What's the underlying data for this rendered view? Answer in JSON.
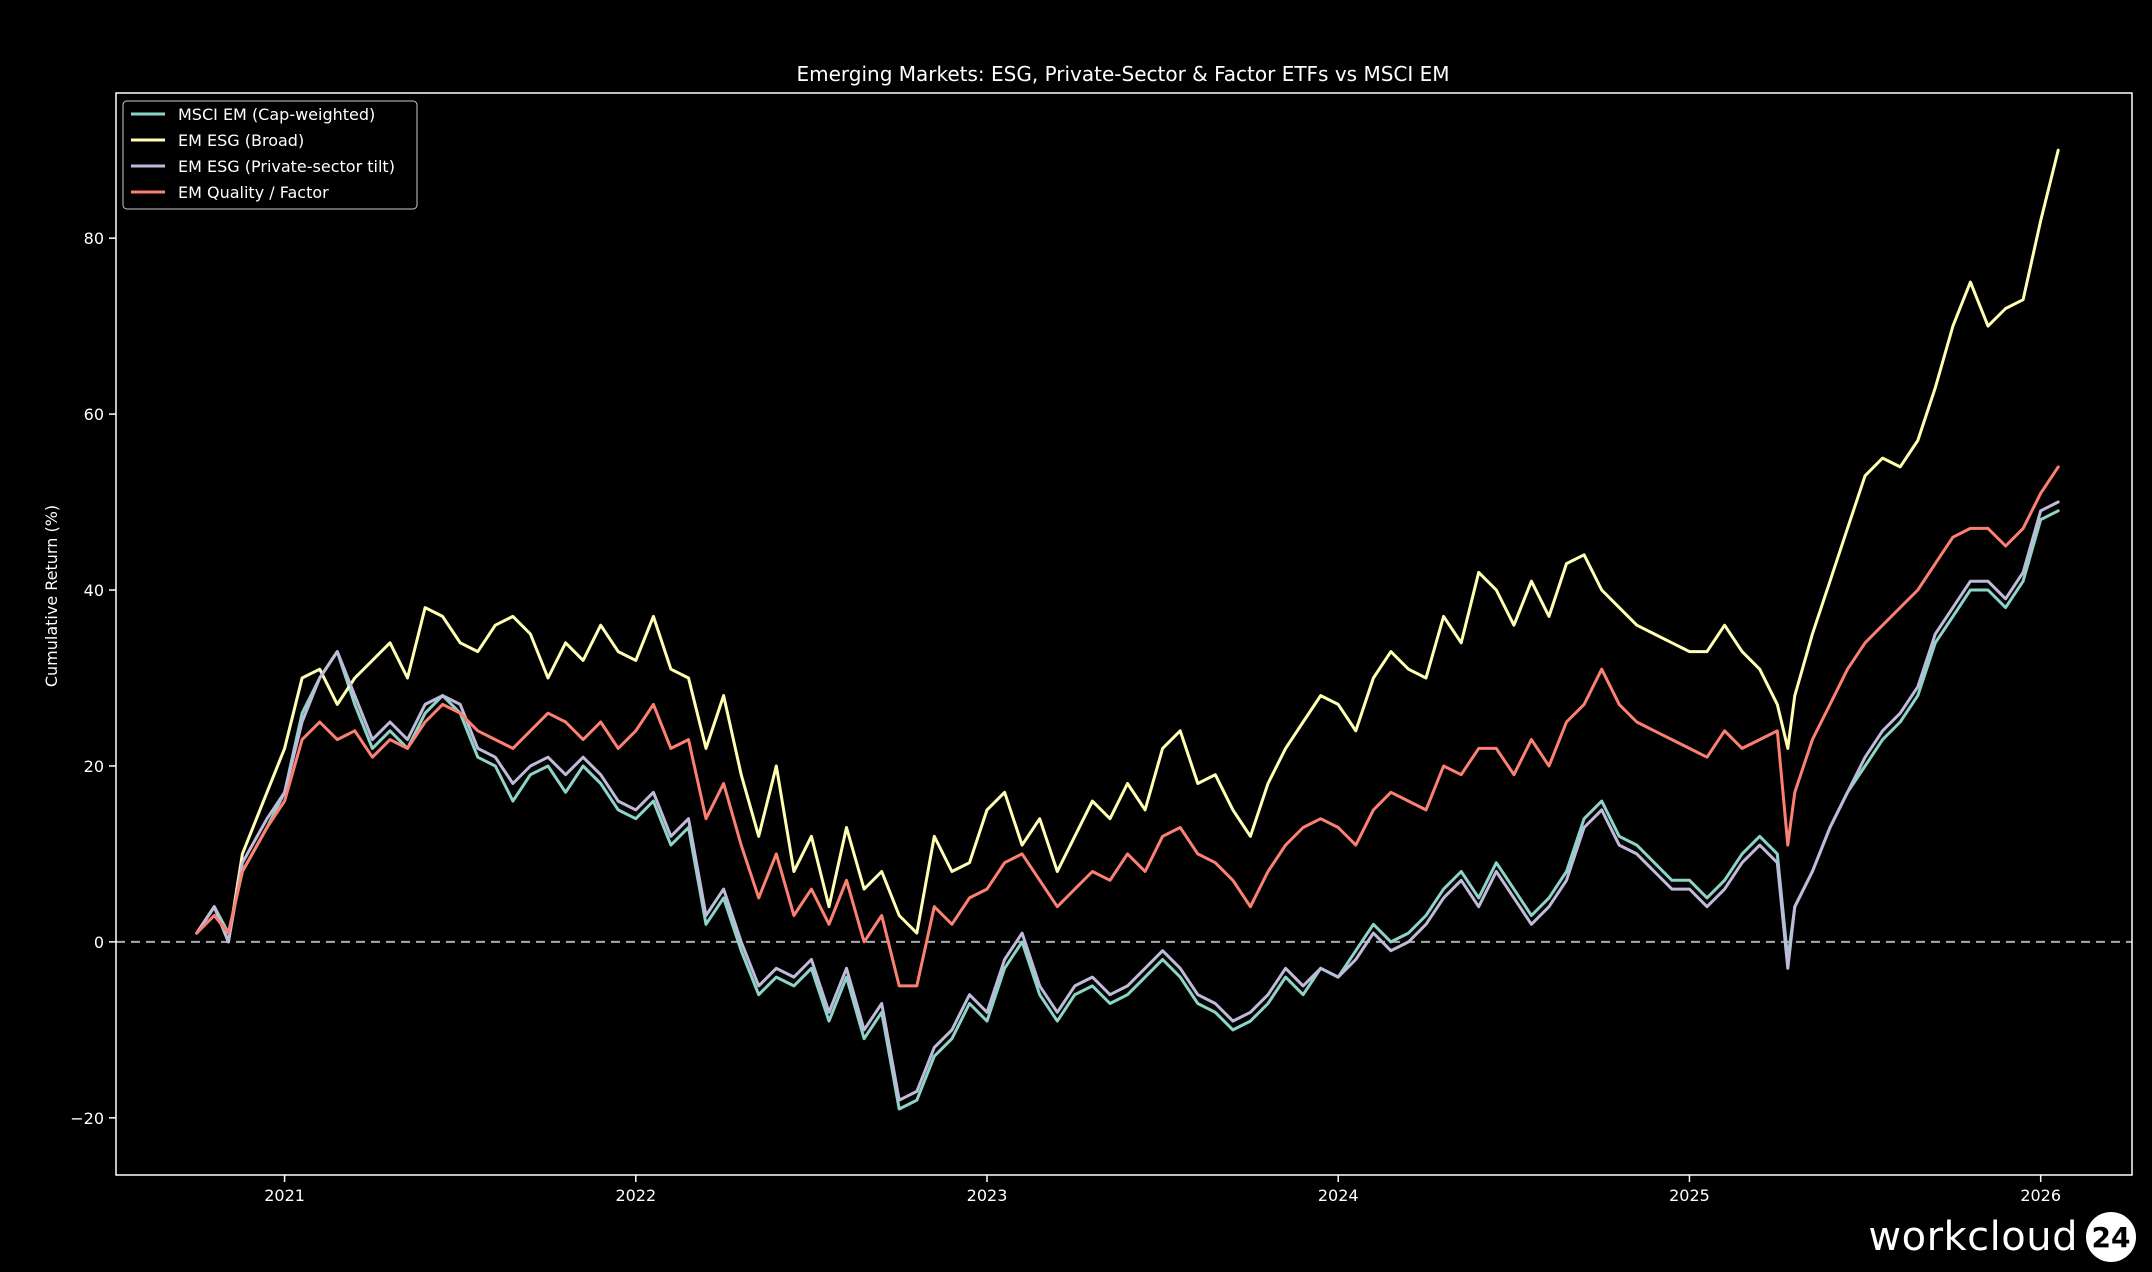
{
  "brand": {
    "name": "workcloud",
    "badge": "24"
  },
  "colors": {
    "background": "#000000",
    "axes": "#ffffff",
    "zero_line": "#aaaaaa"
  },
  "chart_data": {
    "type": "line",
    "title": "Emerging Markets: ESG, Private-Sector & Factor ETFs vs MSCI EM",
    "xlabel": "",
    "ylabel": "Cumulative Return (%)",
    "xlim": [
      2020.52,
      2026.26
    ],
    "ylim": [
      -26.5,
      96.5
    ],
    "x_ticks": [
      2021,
      2022,
      2023,
      2024,
      2025,
      2026
    ],
    "y_ticks": [
      -20,
      0,
      20,
      40,
      60,
      80
    ],
    "y_tick_labels": [
      "−20",
      "0",
      "20",
      "40",
      "60",
      "80"
    ],
    "zero_line": {
      "y": 0,
      "style": "dashed"
    },
    "legend_position": "top-left",
    "series": [
      {
        "name": "MSCI EM (Cap-weighted)",
        "color": "#8dd3c7",
        "x": [
          2020.75,
          2020.8,
          2020.84,
          2020.88,
          2020.95,
          2021.0,
          2021.05,
          2021.1,
          2021.15,
          2021.2,
          2021.25,
          2021.3,
          2021.35,
          2021.4,
          2021.45,
          2021.5,
          2021.55,
          2021.6,
          2021.65,
          2021.7,
          2021.75,
          2021.8,
          2021.85,
          2021.9,
          2021.95,
          2022.0,
          2022.05,
          2022.1,
          2022.15,
          2022.2,
          2022.25,
          2022.3,
          2022.35,
          2022.4,
          2022.45,
          2022.5,
          2022.55,
          2022.6,
          2022.65,
          2022.7,
          2022.75,
          2022.8,
          2022.85,
          2022.9,
          2022.95,
          2023.0,
          2023.05,
          2023.1,
          2023.15,
          2023.2,
          2023.25,
          2023.3,
          2023.35,
          2023.4,
          2023.45,
          2023.5,
          2023.55,
          2023.6,
          2023.65,
          2023.7,
          2023.75,
          2023.8,
          2023.85,
          2023.9,
          2023.95,
          2024.0,
          2024.05,
          2024.1,
          2024.15,
          2024.2,
          2024.25,
          2024.3,
          2024.35,
          2024.4,
          2024.45,
          2024.5,
          2024.55,
          2024.6,
          2024.65,
          2024.7,
          2024.75,
          2024.8,
          2024.85,
          2024.9,
          2024.95,
          2025.0,
          2025.05,
          2025.1,
          2025.15,
          2025.2,
          2025.25,
          2025.28,
          2025.3,
          2025.35,
          2025.4,
          2025.45,
          2025.5,
          2025.55,
          2025.6,
          2025.65,
          2025.7,
          2025.75,
          2025.8,
          2025.85,
          2025.9,
          2025.95,
          2026.0,
          2026.05
        ],
        "values": [
          1,
          4,
          1,
          8,
          13,
          17,
          26,
          30,
          33,
          27,
          22,
          24,
          22,
          26,
          28,
          26,
          21,
          20,
          16,
          19,
          20,
          17,
          20,
          18,
          15,
          14,
          16,
          11,
          13,
          2,
          5,
          -1,
          -6,
          -4,
          -5,
          -3,
          -9,
          -4,
          -11,
          -8,
          -19,
          -18,
          -13,
          -11,
          -7,
          -9,
          -3,
          0,
          -6,
          -9,
          -6,
          -5,
          -7,
          -6,
          -4,
          -2,
          -4,
          -7,
          -8,
          -10,
          -9,
          -7,
          -4,
          -6,
          -3,
          -4,
          -1,
          2,
          0,
          1,
          3,
          6,
          8,
          5,
          9,
          6,
          3,
          5,
          8,
          14,
          16,
          12,
          11,
          9,
          7,
          7,
          5,
          7,
          10,
          12,
          10,
          -2,
          4,
          8,
          13,
          17,
          20,
          23,
          25,
          28,
          34,
          37,
          40,
          40,
          38,
          41,
          48,
          49
        ]
      },
      {
        "name": "EM ESG (Broad)",
        "color": "#ffffb3",
        "x": [
          2020.75,
          2020.8,
          2020.84,
          2020.88,
          2020.95,
          2021.0,
          2021.05,
          2021.1,
          2021.15,
          2021.2,
          2021.25,
          2021.3,
          2021.35,
          2021.4,
          2021.45,
          2021.5,
          2021.55,
          2021.6,
          2021.65,
          2021.7,
          2021.75,
          2021.8,
          2021.85,
          2021.9,
          2021.95,
          2022.0,
          2022.05,
          2022.1,
          2022.15,
          2022.2,
          2022.25,
          2022.3,
          2022.35,
          2022.4,
          2022.45,
          2022.5,
          2022.55,
          2022.6,
          2022.65,
          2022.7,
          2022.75,
          2022.8,
          2022.85,
          2022.9,
          2022.95,
          2023.0,
          2023.05,
          2023.1,
          2023.15,
          2023.2,
          2023.25,
          2023.3,
          2023.35,
          2023.4,
          2023.45,
          2023.5,
          2023.55,
          2023.6,
          2023.65,
          2023.7,
          2023.75,
          2023.8,
          2023.85,
          2023.9,
          2023.95,
          2024.0,
          2024.05,
          2024.1,
          2024.15,
          2024.2,
          2024.25,
          2024.3,
          2024.35,
          2024.4,
          2024.45,
          2024.5,
          2024.55,
          2024.6,
          2024.65,
          2024.7,
          2024.75,
          2024.8,
          2024.85,
          2024.9,
          2024.95,
          2025.0,
          2025.05,
          2025.1,
          2025.15,
          2025.2,
          2025.25,
          2025.28,
          2025.3,
          2025.35,
          2025.4,
          2025.45,
          2025.5,
          2025.55,
          2025.6,
          2025.65,
          2025.7,
          2025.75,
          2025.8,
          2025.85,
          2025.9,
          2025.95,
          2026.0,
          2026.05
        ],
        "values": [
          1,
          4,
          0,
          10,
          17,
          22,
          30,
          31,
          27,
          30,
          32,
          34,
          30,
          38,
          37,
          34,
          33,
          36,
          37,
          35,
          30,
          34,
          32,
          36,
          33,
          32,
          37,
          31,
          30,
          22,
          28,
          19,
          12,
          20,
          8,
          12,
          4,
          13,
          6,
          8,
          3,
          1,
          12,
          8,
          9,
          15,
          17,
          11,
          14,
          8,
          12,
          16,
          14,
          18,
          15,
          22,
          24,
          18,
          19,
          15,
          12,
          18,
          22,
          25,
          28,
          27,
          24,
          30,
          33,
          31,
          30,
          37,
          34,
          42,
          40,
          36,
          41,
          37,
          43,
          44,
          40,
          38,
          36,
          35,
          34,
          33,
          33,
          36,
          33,
          31,
          27,
          22,
          28,
          35,
          41,
          47,
          53,
          55,
          54,
          57,
          63,
          70,
          75,
          70,
          72,
          73,
          82,
          90
        ]
      },
      {
        "name": "EM ESG (Private-sector tilt)",
        "color": "#bebada",
        "x": [
          2020.75,
          2020.8,
          2020.84,
          2020.88,
          2020.95,
          2021.0,
          2021.05,
          2021.1,
          2021.15,
          2021.2,
          2021.25,
          2021.3,
          2021.35,
          2021.4,
          2021.45,
          2021.5,
          2021.55,
          2021.6,
          2021.65,
          2021.7,
          2021.75,
          2021.8,
          2021.85,
          2021.9,
          2021.95,
          2022.0,
          2022.05,
          2022.1,
          2022.15,
          2022.2,
          2022.25,
          2022.3,
          2022.35,
          2022.4,
          2022.45,
          2022.5,
          2022.55,
          2022.6,
          2022.65,
          2022.7,
          2022.75,
          2022.8,
          2022.85,
          2022.9,
          2022.95,
          2023.0,
          2023.05,
          2023.1,
          2023.15,
          2023.2,
          2023.25,
          2023.3,
          2023.35,
          2023.4,
          2023.45,
          2023.5,
          2023.55,
          2023.6,
          2023.65,
          2023.7,
          2023.75,
          2023.8,
          2023.85,
          2023.9,
          2023.95,
          2024.0,
          2024.05,
          2024.1,
          2024.15,
          2024.2,
          2024.25,
          2024.3,
          2024.35,
          2024.4,
          2024.45,
          2024.5,
          2024.55,
          2024.6,
          2024.65,
          2024.7,
          2024.75,
          2024.8,
          2024.85,
          2024.9,
          2024.95,
          2025.0,
          2025.05,
          2025.1,
          2025.15,
          2025.2,
          2025.25,
          2025.28,
          2025.3,
          2025.35,
          2025.4,
          2025.45,
          2025.5,
          2025.55,
          2025.6,
          2025.65,
          2025.7,
          2025.75,
          2025.8,
          2025.85,
          2025.9,
          2025.95,
          2026.0,
          2026.05
        ],
        "values": [
          1,
          4,
          0,
          9,
          14,
          17,
          25,
          30,
          33,
          28,
          23,
          25,
          23,
          27,
          28,
          27,
          22,
          21,
          18,
          20,
          21,
          19,
          21,
          19,
          16,
          15,
          17,
          12,
          14,
          3,
          6,
          0,
          -5,
          -3,
          -4,
          -2,
          -8,
          -3,
          -10,
          -7,
          -18,
          -17,
          -12,
          -10,
          -6,
          -8,
          -2,
          1,
          -5,
          -8,
          -5,
          -4,
          -6,
          -5,
          -3,
          -1,
          -3,
          -6,
          -7,
          -9,
          -8,
          -6,
          -3,
          -5,
          -3,
          -4,
          -2,
          1,
          -1,
          0,
          2,
          5,
          7,
          4,
          8,
          5,
          2,
          4,
          7,
          13,
          15,
          11,
          10,
          8,
          6,
          6,
          4,
          6,
          9,
          11,
          9,
          -3,
          4,
          8,
          13,
          17,
          21,
          24,
          26,
          29,
          35,
          38,
          41,
          41,
          39,
          42,
          49,
          50
        ]
      },
      {
        "name": "EM Quality / Factor",
        "color": "#fb8072",
        "x": [
          2020.75,
          2020.8,
          2020.84,
          2020.88,
          2020.95,
          2021.0,
          2021.05,
          2021.1,
          2021.15,
          2021.2,
          2021.25,
          2021.3,
          2021.35,
          2021.4,
          2021.45,
          2021.5,
          2021.55,
          2021.6,
          2021.65,
          2021.7,
          2021.75,
          2021.8,
          2021.85,
          2021.9,
          2021.95,
          2022.0,
          2022.05,
          2022.1,
          2022.15,
          2022.2,
          2022.25,
          2022.3,
          2022.35,
          2022.4,
          2022.45,
          2022.5,
          2022.55,
          2022.6,
          2022.65,
          2022.7,
          2022.75,
          2022.8,
          2022.85,
          2022.9,
          2022.95,
          2023.0,
          2023.05,
          2023.1,
          2023.15,
          2023.2,
          2023.25,
          2023.3,
          2023.35,
          2023.4,
          2023.45,
          2023.5,
          2023.55,
          2023.6,
          2023.65,
          2023.7,
          2023.75,
          2023.8,
          2023.85,
          2023.9,
          2023.95,
          2024.0,
          2024.05,
          2024.1,
          2024.15,
          2024.2,
          2024.25,
          2024.3,
          2024.35,
          2024.4,
          2024.45,
          2024.5,
          2024.55,
          2024.6,
          2024.65,
          2024.7,
          2024.75,
          2024.8,
          2024.85,
          2024.9,
          2024.95,
          2025.0,
          2025.05,
          2025.1,
          2025.15,
          2025.2,
          2025.25,
          2025.28,
          2025.3,
          2025.35,
          2025.4,
          2025.45,
          2025.5,
          2025.55,
          2025.6,
          2025.65,
          2025.7,
          2025.75,
          2025.8,
          2025.85,
          2025.9,
          2025.95,
          2026.0,
          2026.05
        ],
        "values": [
          1,
          3,
          1,
          8,
          13,
          16,
          23,
          25,
          23,
          24,
          21,
          23,
          22,
          25,
          27,
          26,
          24,
          23,
          22,
          24,
          26,
          25,
          23,
          25,
          22,
          24,
          27,
          22,
          23,
          14,
          18,
          11,
          5,
          10,
          3,
          6,
          2,
          7,
          0,
          3,
          -5,
          -5,
          4,
          2,
          5,
          6,
          9,
          10,
          7,
          4,
          6,
          8,
          7,
          10,
          8,
          12,
          13,
          10,
          9,
          7,
          4,
          8,
          11,
          13,
          14,
          13,
          11,
          15,
          17,
          16,
          15,
          20,
          19,
          22,
          22,
          19,
          23,
          20,
          25,
          27,
          31,
          27,
          25,
          24,
          23,
          22,
          21,
          24,
          22,
          23,
          24,
          11,
          17,
          23,
          27,
          31,
          34,
          36,
          38,
          40,
          43,
          46,
          47,
          47,
          45,
          47,
          51,
          54
        ]
      }
    ]
  }
}
